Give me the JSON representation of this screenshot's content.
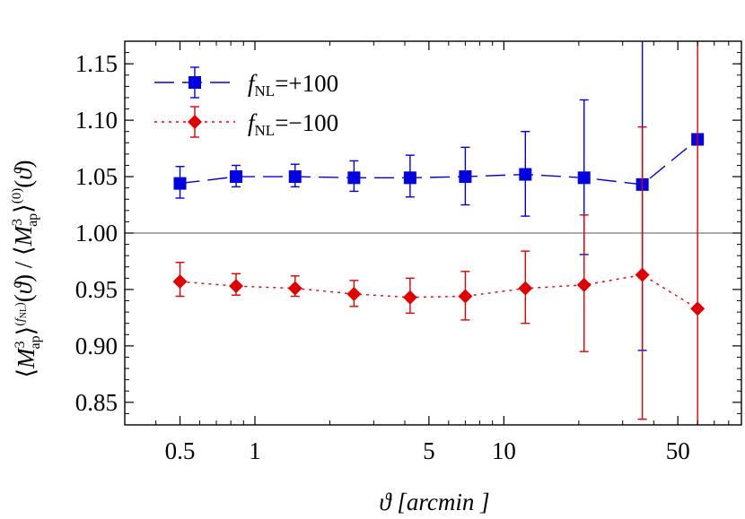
{
  "chart_data": {
    "type": "scatter",
    "title": "",
    "xlabel": "ϑ [arcmin ]",
    "ylabel": "⟨M³ap⟩(fNL)(ϑ) / ⟨M³ap⟩(0)(ϑ)",
    "xscale": "log",
    "xlim": [
      0.3,
      90
    ],
    "ylim": [
      0.83,
      1.17
    ],
    "x_ticks": [
      0.5,
      1,
      5,
      10,
      50
    ],
    "x_tick_labels": [
      "0.5",
      "1",
      "5",
      "10",
      "50"
    ],
    "y_ticks": [
      0.85,
      0.9,
      0.95,
      1.0,
      1.05,
      1.1,
      1.15
    ],
    "y_tick_labels": [
      "0.85",
      "0.90",
      "0.95",
      "1.00",
      "1.05",
      "1.10",
      "1.15"
    ],
    "reference_line": 1.0,
    "legend_position": "top-left",
    "series": [
      {
        "name": "fNL=+100",
        "legend_prefix": "f",
        "legend_subscript": "NL",
        "legend_value": "=+100",
        "color": "#0000e0",
        "marker": "square",
        "line_style": "long-dash",
        "x": [
          0.5,
          0.84,
          1.45,
          2.5,
          4.2,
          7.0,
          12.2,
          21.0,
          36.0,
          60.0
        ],
        "y": [
          1.044,
          1.05,
          1.05,
          1.049,
          1.049,
          1.05,
          1.052,
          1.049,
          1.043,
          1.083
        ],
        "err_lo": [
          1.031,
          1.041,
          1.041,
          1.037,
          1.032,
          1.025,
          1.015,
          0.981,
          0.896,
          null
        ],
        "err_hi": [
          1.059,
          1.06,
          1.061,
          1.064,
          1.069,
          1.076,
          1.09,
          1.118,
          1.17,
          null
        ]
      },
      {
        "name": "fNL=−100",
        "legend_prefix": "f",
        "legend_subscript": "NL",
        "legend_value": "=−100",
        "color": "#e00000",
        "marker": "diamond",
        "line_style": "dotted",
        "x": [
          0.5,
          0.84,
          1.45,
          2.5,
          4.2,
          7.0,
          12.2,
          21.0,
          36.0,
          60.0
        ],
        "y": [
          0.957,
          0.953,
          0.951,
          0.946,
          0.943,
          0.944,
          0.951,
          0.954,
          0.963,
          0.933
        ],
        "err_lo": [
          0.944,
          0.945,
          0.944,
          0.935,
          0.929,
          0.923,
          0.92,
          0.895,
          0.835,
          0.83
        ],
        "err_hi": [
          0.974,
          0.964,
          0.962,
          0.958,
          0.96,
          0.966,
          0.984,
          1.016,
          1.094,
          1.17
        ]
      }
    ]
  }
}
